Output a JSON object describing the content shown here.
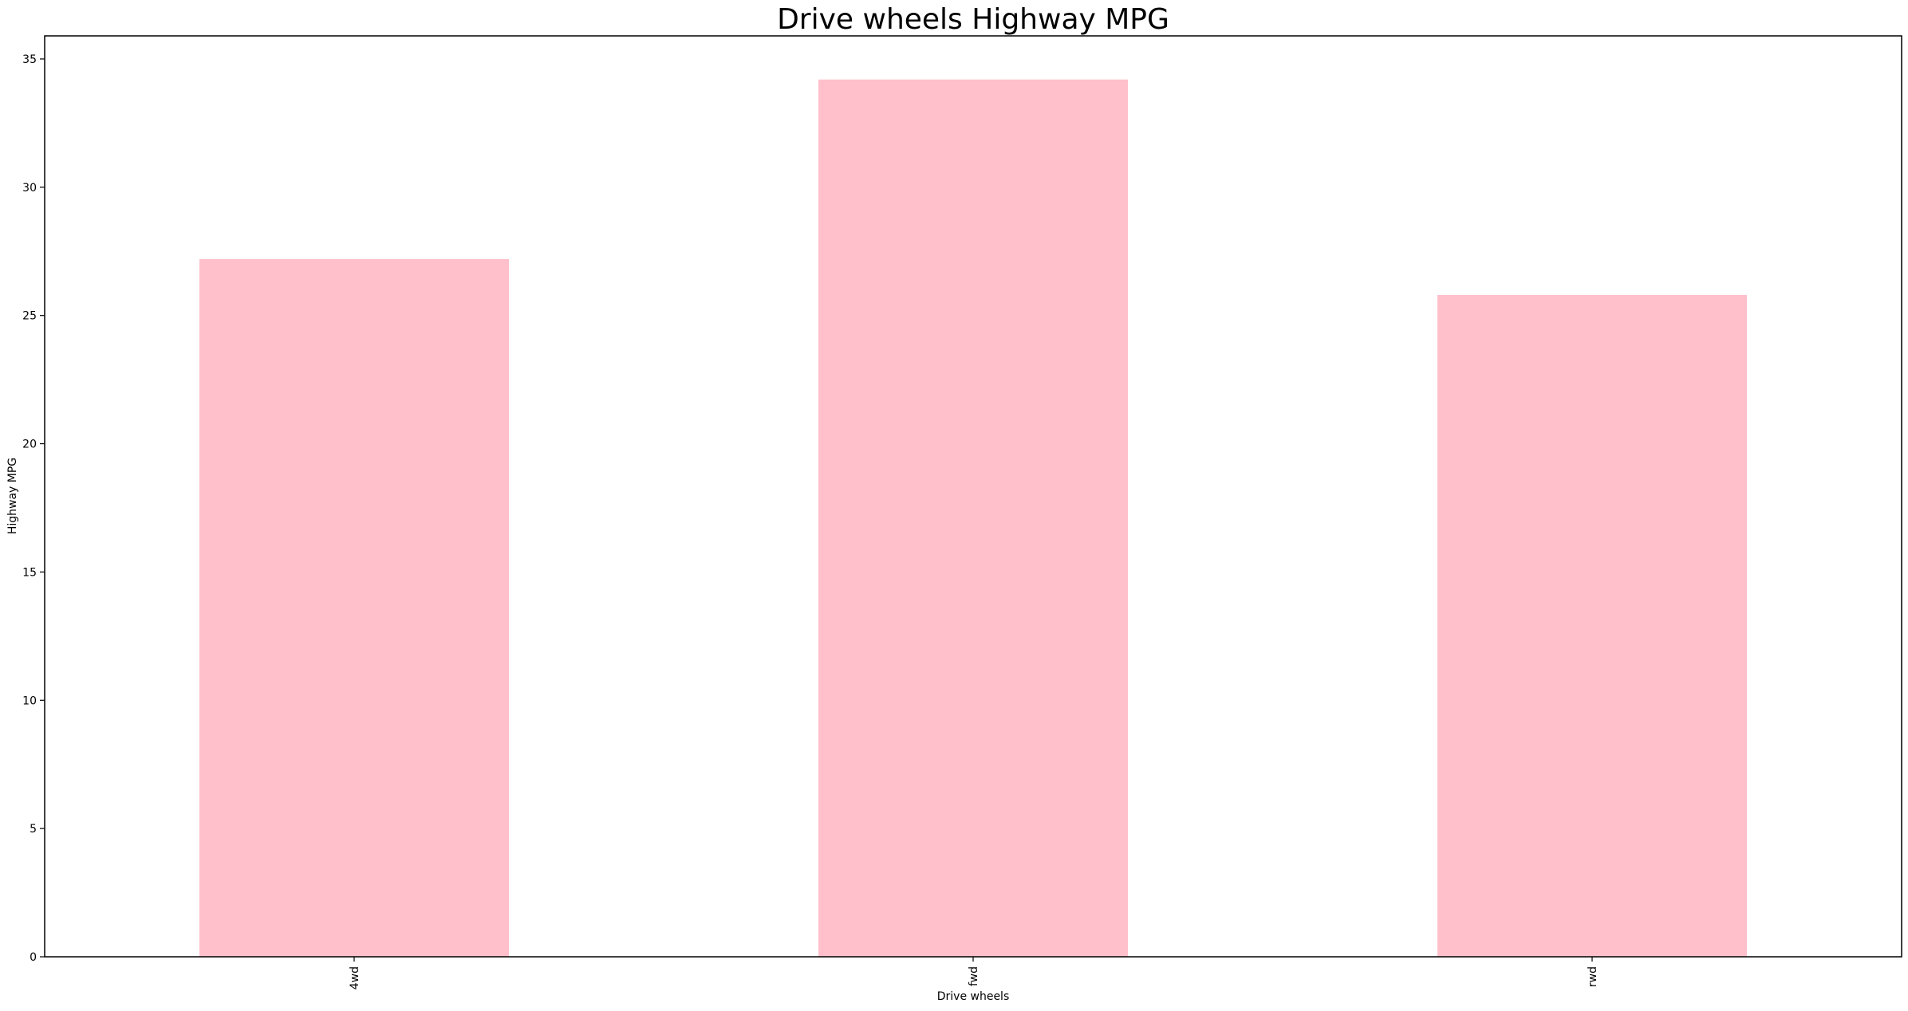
{
  "chart_data": {
    "type": "bar",
    "title": "Drive wheels Highway MPG",
    "xlabel": "Drive wheels",
    "ylabel": "Highway MPG",
    "categories": [
      "4wd",
      "fwd",
      "rwd"
    ],
    "values": [
      27.2,
      34.2,
      25.8
    ],
    "ylim": [
      0,
      35.9
    ],
    "yticks": [
      0,
      5,
      10,
      15,
      20,
      25,
      30,
      35
    ],
    "grid": false,
    "legend": "none",
    "bar_color": "#ffc0cb"
  }
}
